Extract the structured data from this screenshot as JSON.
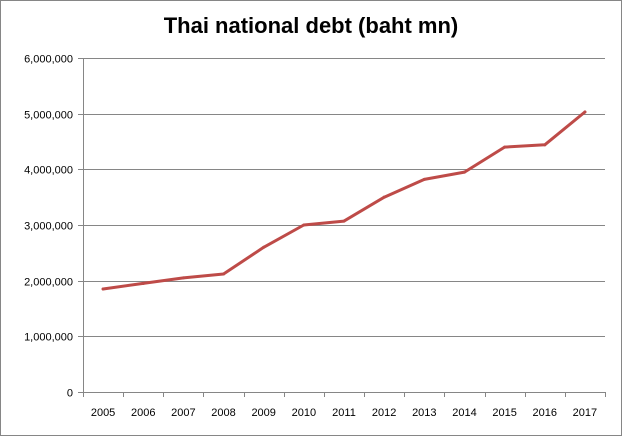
{
  "chart_data": {
    "type": "line",
    "title": "Thai national debt (baht mn)",
    "xlabel": "",
    "ylabel": "",
    "x": [
      "2005",
      "2006",
      "2007",
      "2008",
      "2009",
      "2010",
      "2011",
      "2012",
      "2013",
      "2014",
      "2015",
      "2016",
      "2017"
    ],
    "series": [
      {
        "values": [
          1850000,
          1950000,
          2050000,
          2120000,
          2600000,
          3000000,
          3070000,
          3500000,
          3820000,
          3950000,
          4400000,
          4440000,
          5030000
        ],
        "color": "#be4b48"
      }
    ],
    "ylim": [
      0,
      6000000
    ],
    "yticks": [
      0,
      1000000,
      2000000,
      3000000,
      4000000,
      5000000,
      6000000
    ],
    "ytick_labels": [
      "0",
      "1,000,000",
      "2,000,000",
      "3,000,000",
      "4,000,000",
      "5,000,000",
      "6,000,000"
    ],
    "grid": true,
    "legend": "none"
  }
}
